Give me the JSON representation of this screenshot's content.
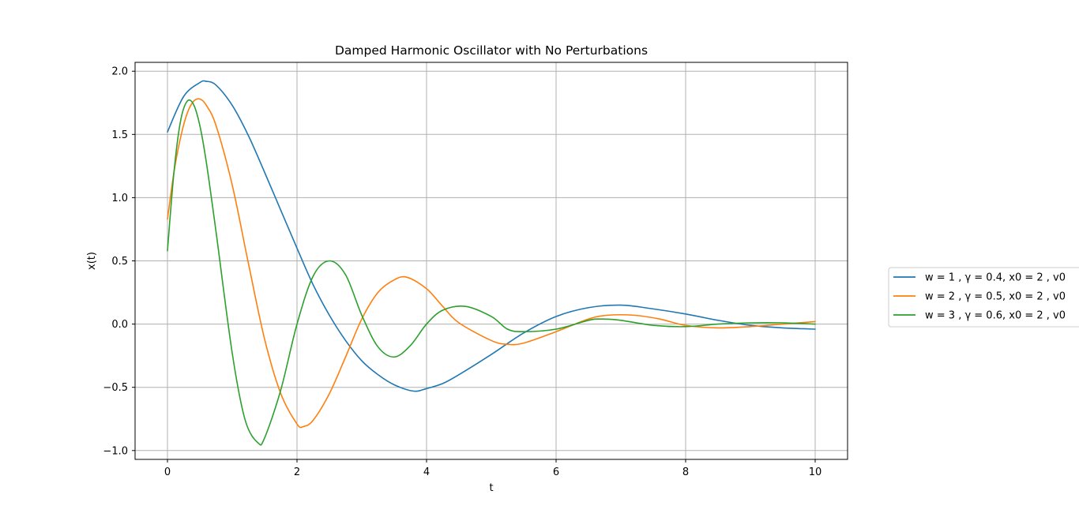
{
  "chart_data": {
    "type": "line",
    "title": "Damped Harmonic Oscillator with No Perturbations",
    "xlabel": "t",
    "ylabel": "x(t)",
    "xlim": [
      -0.5,
      10.5
    ],
    "ylim": [
      -1.07,
      2.07
    ],
    "xticks": [
      0,
      2,
      4,
      6,
      8,
      10
    ],
    "xtick_labels": [
      "0",
      "2",
      "4",
      "6",
      "8",
      "10"
    ],
    "yticks": [
      -1.0,
      -0.5,
      0.0,
      0.5,
      1.0,
      1.5,
      2.0
    ],
    "ytick_labels": [
      "−1.0",
      "−0.5",
      "0.0",
      "0.5",
      "1.0",
      "1.5",
      "2.0"
    ],
    "grid": true,
    "legend_position": "outside-right",
    "series": [
      {
        "name": "w = 1 , γ = 0.4, x0 = 2 , v0",
        "color": "#1f77b4",
        "x": [
          0,
          0.25,
          0.5,
          0.6,
          0.75,
          1.0,
          1.25,
          1.5,
          1.75,
          2.0,
          2.25,
          2.5,
          2.75,
          3.0,
          3.25,
          3.5,
          3.8,
          4.0,
          4.25,
          4.5,
          5.0,
          5.5,
          6.0,
          6.5,
          7.0,
          7.5,
          8.0,
          8.5,
          9.0,
          9.5,
          10.0
        ],
        "y": [
          1.52,
          1.8,
          1.91,
          1.92,
          1.89,
          1.73,
          1.49,
          1.2,
          0.9,
          0.6,
          0.31,
          0.07,
          -0.13,
          -0.29,
          -0.4,
          -0.48,
          -0.53,
          -0.51,
          -0.47,
          -0.4,
          -0.24,
          -0.07,
          0.06,
          0.13,
          0.15,
          0.12,
          0.08,
          0.03,
          -0.01,
          -0.03,
          -0.04
        ]
      },
      {
        "name": "w = 2 , γ = 0.5, x0 = 2 , v0",
        "color": "#ff7f0e",
        "x": [
          0,
          0.1,
          0.2,
          0.3,
          0.4,
          0.5,
          0.6,
          0.75,
          1.0,
          1.25,
          1.5,
          1.75,
          2.0,
          2.1,
          2.25,
          2.5,
          2.75,
          3.0,
          3.25,
          3.5,
          3.7,
          4.0,
          4.25,
          4.5,
          5.0,
          5.25,
          5.5,
          6.0,
          6.5,
          6.8,
          7.2,
          7.6,
          8.0,
          8.5,
          9.0,
          9.5,
          10.0
        ],
        "y": [
          0.83,
          1.2,
          1.47,
          1.66,
          1.76,
          1.78,
          1.73,
          1.57,
          1.1,
          0.48,
          -0.12,
          -0.55,
          -0.79,
          -0.81,
          -0.76,
          -0.55,
          -0.26,
          0.04,
          0.25,
          0.35,
          0.37,
          0.28,
          0.14,
          0.01,
          -0.13,
          -0.16,
          -0.15,
          -0.06,
          0.04,
          0.07,
          0.07,
          0.04,
          -0.01,
          -0.03,
          -0.02,
          0.0,
          0.02
        ]
      },
      {
        "name": "w = 3 , γ = 0.6, x0 = 2 , v0",
        "color": "#2ca02c",
        "x": [
          0,
          0.1,
          0.2,
          0.3,
          0.4,
          0.5,
          0.6,
          0.75,
          1.0,
          1.2,
          1.4,
          1.5,
          1.75,
          2.0,
          2.25,
          2.5,
          2.75,
          3.0,
          3.25,
          3.5,
          3.75,
          4.0,
          4.25,
          4.6,
          5.0,
          5.25,
          5.5,
          6.0,
          6.5,
          6.7,
          7.0,
          7.5,
          8.0,
          8.5,
          9.0,
          9.5,
          10.0
        ],
        "y": [
          0.58,
          1.2,
          1.6,
          1.76,
          1.74,
          1.57,
          1.28,
          0.73,
          -0.23,
          -0.76,
          -0.94,
          -0.9,
          -0.52,
          0.0,
          0.38,
          0.5,
          0.39,
          0.07,
          -0.18,
          -0.26,
          -0.17,
          0.0,
          0.11,
          0.14,
          0.06,
          -0.04,
          -0.06,
          -0.04,
          0.03,
          0.04,
          0.03,
          -0.01,
          -0.02,
          0.0,
          0.01,
          0.01,
          0.0
        ]
      }
    ]
  }
}
